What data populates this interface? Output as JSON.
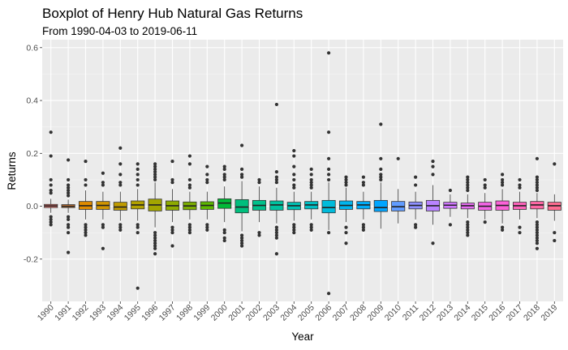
{
  "title": "Boxplot of Henry Hub Natural Gas Returns",
  "subtitle": "From 1990-04-03 to 2019-06-11",
  "chart_data": {
    "type": "boxplot",
    "xlabel": "Year",
    "ylabel": "Returns",
    "ylim": [
      -0.36,
      0.63
    ],
    "y_ticks": [
      -0.2,
      0.0,
      0.2,
      0.4,
      0.6
    ],
    "y_tick_labels": [
      "-0.2",
      "0.0",
      "0.2",
      "0.4",
      "0.6"
    ],
    "grid": true,
    "legend": "none",
    "categories": [
      "1990",
      "1991",
      "1992",
      "1993",
      "1994",
      "1995",
      "1996",
      "1997",
      "1998",
      "1999",
      "2000",
      "2001",
      "2002",
      "2003",
      "2004",
      "2005",
      "2006",
      "2007",
      "2008",
      "2009",
      "2010",
      "2011",
      "2012",
      "2013",
      "2014",
      "2015",
      "2016",
      "2017",
      "2018",
      "2019"
    ],
    "colors": [
      "#F8766D",
      "#EA8331",
      "#E08B00",
      "#D19500",
      "#C09B00",
      "#B2A100",
      "#A3A500",
      "#8EAB00",
      "#7CAE00",
      "#5DB700",
      "#00BA38",
      "#00BF7D",
      "#00C08B",
      "#00C19F",
      "#00C1B4",
      "#00BFC4",
      "#00BBDB",
      "#00B5EE",
      "#00ADFA",
      "#00A5FF",
      "#619CFF",
      "#8F91FF",
      "#B983FF",
      "#D078FF",
      "#E76BF3",
      "#F464E6",
      "#FB61D7",
      "#FF62BC",
      "#FF67A4",
      "#FF6C91"
    ],
    "boxes": [
      {
        "q1": -0.005,
        "median": 0.001,
        "q3": 0.007,
        "whisker_low": -0.025,
        "whisker_high": 0.028,
        "outliers": [
          0.28,
          0.19,
          0.1,
          0.08,
          0.06,
          0.05,
          -0.04,
          -0.05,
          -0.06,
          -0.07
        ]
      },
      {
        "q1": -0.005,
        "median": 0.0,
        "q3": 0.006,
        "whisker_low": -0.025,
        "whisker_high": 0.025,
        "outliers": [
          0.175,
          0.1,
          0.08,
          0.07,
          0.06,
          0.05,
          0.04,
          -0.04,
          -0.05,
          -0.07,
          -0.08,
          -0.1,
          -0.175
        ]
      },
      {
        "q1": -0.012,
        "median": 0.002,
        "q3": 0.018,
        "whisker_low": -0.05,
        "whisker_high": 0.06,
        "outliers": [
          0.17,
          0.1,
          0.08,
          -0.07,
          -0.08,
          -0.09,
          -0.1,
          -0.11
        ]
      },
      {
        "q1": -0.012,
        "median": 0.003,
        "q3": 0.018,
        "whisker_low": -0.05,
        "whisker_high": 0.055,
        "outliers": [
          0.125,
          0.09,
          0.08,
          -0.07,
          -0.08,
          -0.16
        ]
      },
      {
        "q1": -0.015,
        "median": -0.003,
        "q3": 0.015,
        "whisker_low": -0.055,
        "whisker_high": 0.055,
        "outliers": [
          0.22,
          0.16,
          0.12,
          0.09,
          0.08,
          -0.07,
          -0.08,
          -0.09
        ]
      },
      {
        "q1": -0.01,
        "median": 0.005,
        "q3": 0.02,
        "whisker_low": -0.055,
        "whisker_high": 0.065,
        "outliers": [
          0.16,
          0.14,
          0.12,
          0.1,
          0.08,
          -0.07,
          -0.08,
          -0.1,
          -0.31
        ]
      },
      {
        "q1": -0.018,
        "median": 0.005,
        "q3": 0.027,
        "whisker_low": -0.08,
        "whisker_high": 0.09,
        "outliers": [
          0.16,
          0.15,
          0.14,
          0.13,
          0.12,
          0.11,
          0.1,
          -0.1,
          -0.11,
          -0.12,
          -0.13,
          -0.14,
          -0.15,
          -0.16,
          -0.18
        ]
      },
      {
        "q1": -0.015,
        "median": 0.002,
        "q3": 0.02,
        "whisker_low": -0.06,
        "whisker_high": 0.065,
        "outliers": [
          0.17,
          0.1,
          0.09,
          -0.08,
          -0.09,
          -0.1,
          -0.15
        ]
      },
      {
        "q1": -0.013,
        "median": 0.001,
        "q3": 0.016,
        "whisker_low": -0.05,
        "whisker_high": 0.055,
        "outliers": [
          0.19,
          0.16,
          0.1,
          0.08,
          0.07,
          -0.07,
          -0.08,
          -0.09,
          -0.1
        ]
      },
      {
        "q1": -0.012,
        "median": 0.003,
        "q3": 0.017,
        "whisker_low": -0.05,
        "whisker_high": 0.055,
        "outliers": [
          0.15,
          0.12,
          0.1,
          0.09,
          -0.07,
          -0.08,
          -0.09
        ]
      },
      {
        "q1": -0.008,
        "median": 0.012,
        "q3": 0.028,
        "whisker_low": -0.06,
        "whisker_high": 0.075,
        "outliers": [
          0.15,
          0.14,
          0.12,
          0.11,
          0.1,
          -0.09,
          -0.1,
          -0.12,
          -0.13
        ]
      },
      {
        "q1": -0.025,
        "median": -0.003,
        "q3": 0.025,
        "whisker_low": -0.095,
        "whisker_high": 0.095,
        "outliers": [
          0.23,
          0.14,
          0.12,
          0.11,
          -0.11,
          -0.12,
          -0.13,
          -0.14,
          -0.15
        ]
      },
      {
        "q1": -0.015,
        "median": 0.003,
        "q3": 0.022,
        "whisker_low": -0.06,
        "whisker_high": 0.075,
        "outliers": [
          0.1,
          0.09,
          -0.1,
          -0.11
        ]
      },
      {
        "q1": -0.015,
        "median": 0.005,
        "q3": 0.02,
        "whisker_low": -0.065,
        "whisker_high": 0.07,
        "outliers": [
          0.385,
          0.13,
          0.11,
          0.1,
          0.09,
          -0.08,
          -0.09,
          -0.1,
          -0.11,
          -0.12,
          -0.18
        ]
      },
      {
        "q1": -0.013,
        "median": 0.002,
        "q3": 0.015,
        "whisker_low": -0.055,
        "whisker_high": 0.055,
        "outliers": [
          0.21,
          0.19,
          0.15,
          0.12,
          0.1,
          0.08,
          0.07,
          -0.07,
          -0.08,
          -0.09,
          -0.1
        ]
      },
      {
        "q1": -0.01,
        "median": 0.005,
        "q3": 0.018,
        "whisker_low": -0.05,
        "whisker_high": 0.055,
        "outliers": [
          0.14,
          0.12,
          0.1,
          0.09,
          0.08,
          0.07,
          -0.07,
          -0.08,
          -0.09
        ]
      },
      {
        "q1": -0.025,
        "median": -0.005,
        "q3": 0.022,
        "whisker_low": -0.09,
        "whisker_high": 0.09,
        "outliers": [
          0.58,
          0.28,
          0.18,
          0.14,
          0.12,
          0.1,
          -0.1,
          -0.33
        ]
      },
      {
        "q1": -0.012,
        "median": 0.003,
        "q3": 0.02,
        "whisker_low": -0.06,
        "whisker_high": 0.07,
        "outliers": [
          0.11,
          0.1,
          0.09,
          0.08,
          -0.08,
          -0.1,
          -0.14
        ]
      },
      {
        "q1": -0.01,
        "median": 0.005,
        "q3": 0.018,
        "whisker_low": -0.05,
        "whisker_high": 0.055,
        "outliers": [
          0.11,
          0.09,
          0.08,
          -0.07,
          -0.08,
          -0.09
        ]
      },
      {
        "q1": -0.02,
        "median": -0.005,
        "q3": 0.022,
        "whisker_low": -0.085,
        "whisker_high": 0.09,
        "outliers": [
          0.31,
          0.18,
          0.14,
          0.12,
          0.11,
          0.1
        ]
      },
      {
        "q1": -0.018,
        "median": -0.002,
        "q3": 0.018,
        "whisker_low": -0.065,
        "whisker_high": 0.065,
        "outliers": [
          0.18
        ]
      },
      {
        "q1": -0.01,
        "median": 0.003,
        "q3": 0.016,
        "whisker_low": -0.05,
        "whisker_high": 0.055,
        "outliers": [
          0.11,
          0.08,
          -0.07,
          -0.08
        ]
      },
      {
        "q1": -0.018,
        "median": 0.002,
        "q3": 0.022,
        "whisker_low": -0.07,
        "whisker_high": 0.08,
        "outliers": [
          0.17,
          0.15,
          0.12,
          -0.14
        ]
      },
      {
        "q1": -0.008,
        "median": 0.004,
        "q3": 0.015,
        "whisker_low": -0.04,
        "whisker_high": 0.045,
        "outliers": [
          0.06,
          -0.07
        ]
      },
      {
        "q1": -0.01,
        "median": 0.002,
        "q3": 0.012,
        "whisker_low": -0.045,
        "whisker_high": 0.045,
        "outliers": [
          0.11,
          0.1,
          0.09,
          0.08,
          0.07,
          0.06,
          -0.06,
          -0.07,
          -0.08,
          -0.09,
          -0.1,
          -0.11
        ]
      },
      {
        "q1": -0.015,
        "median": 0.0,
        "q3": 0.015,
        "whisker_low": -0.05,
        "whisker_high": 0.05,
        "outliers": [
          0.1,
          0.08,
          0.07,
          -0.06
        ]
      },
      {
        "q1": -0.015,
        "median": 0.003,
        "q3": 0.02,
        "whisker_low": -0.065,
        "whisker_high": 0.065,
        "outliers": [
          0.12,
          0.1,
          0.09,
          0.08,
          -0.08,
          -0.09
        ]
      },
      {
        "q1": -0.012,
        "median": 0.002,
        "q3": 0.015,
        "whisker_low": -0.05,
        "whisker_high": 0.055,
        "outliers": [
          0.1,
          0.08,
          0.07,
          -0.08,
          -0.1
        ]
      },
      {
        "q1": -0.01,
        "median": 0.005,
        "q3": 0.018,
        "whisker_low": -0.045,
        "whisker_high": 0.05,
        "outliers": [
          0.18,
          0.11,
          0.1,
          0.09,
          0.08,
          0.07,
          0.06,
          -0.06,
          -0.07,
          -0.08,
          -0.09,
          -0.1,
          -0.11,
          -0.12,
          -0.13,
          -0.14,
          -0.16
        ]
      },
      {
        "q1": -0.015,
        "median": 0.002,
        "q3": 0.015,
        "whisker_low": -0.055,
        "whisker_high": 0.045,
        "outliers": [
          0.16,
          -0.1,
          -0.13
        ]
      }
    ]
  }
}
